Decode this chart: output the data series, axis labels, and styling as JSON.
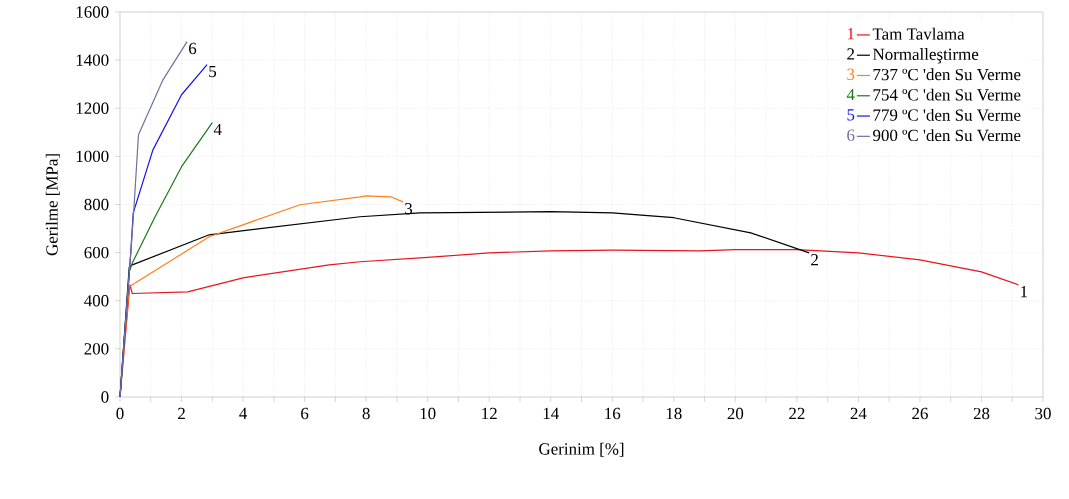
{
  "chart_data": {
    "type": "line",
    "xlabel": "Gerinim [%]",
    "ylabel": "Gerilme [MPa]",
    "xlim": [
      0,
      30
    ],
    "ylim": [
      0,
      1600
    ],
    "xticks": [
      0,
      {
        "value": 1,
        "label": null
      },
      2,
      {
        "value": 3,
        "label": null
      },
      4,
      {
        "value": 5,
        "label": null
      },
      6,
      {
        "value": 7,
        "label": null
      },
      8,
      {
        "value": 9,
        "label": null
      },
      10,
      {
        "value": 11,
        "label": null
      },
      12,
      {
        "value": 13,
        "label": null
      },
      14,
      {
        "value": 15,
        "label": null
      },
      16,
      {
        "value": 17,
        "label": null
      },
      18,
      {
        "value": 19,
        "label": null
      },
      20,
      {
        "value": 21,
        "label": null
      },
      22,
      {
        "value": 23,
        "label": null
      },
      24,
      {
        "value": 25,
        "label": null
      },
      26,
      {
        "value": 27,
        "label": null
      },
      28,
      {
        "value": 29,
        "label": null
      },
      30
    ],
    "yticks": [
      0,
      200,
      400,
      600,
      800,
      1000,
      1200,
      1400,
      1600
    ],
    "grid": true,
    "legend": "top right",
    "line_style": "solid",
    "series": [
      {
        "name": "Tam Tavlama",
        "color": "#e8141e",
        "x": [
          0,
          0.32,
          0.4,
          2.2,
          4.0,
          6.8,
          7.8,
          10,
          12,
          14,
          16,
          18.85,
          20,
          22,
          24,
          26,
          28,
          29.2
        ],
        "values": [
          0,
          466,
          430,
          437,
          495,
          549,
          562,
          580,
          599,
          607,
          610,
          607,
          612,
          612,
          599,
          570,
          520,
          466
        ]
      },
      {
        "name": "Normalleştirme",
        "color": "#000000",
        "x": [
          0,
          0.3,
          0.4,
          2.9,
          7.8,
          9.75,
          14,
          16,
          18,
          20.5,
          22.4
        ],
        "values": [
          0,
          540,
          549,
          674,
          749,
          765,
          770,
          765,
          745,
          682,
          599
        ]
      },
      {
        "name": "737 ºC 'den Su Verme",
        "color": "#ff7f1e",
        "x": [
          0,
          0.3,
          0.4,
          2.9,
          5.85,
          7.8,
          8.0,
          8.8,
          9.2
        ],
        "values": [
          0,
          460,
          466,
          666,
          799,
          832,
          836,
          832,
          811
        ]
      },
      {
        "name": "754 ºC 'den Su Verme",
        "color": "#1a7a1a",
        "x": [
          0,
          0.3,
          0.4,
          1.14,
          2.0,
          3.0
        ],
        "values": [
          0,
          520,
          557,
          749,
          957,
          1140
        ]
      },
      {
        "name": "779 ºC 'den Su Verme",
        "color": "#1414e6",
        "x": [
          0,
          0.35,
          0.43,
          1.07,
          2.0,
          2.83
        ],
        "values": [
          0,
          600,
          765,
          1027,
          1256,
          1381
        ]
      },
      {
        "name": "900 ºC 'den Su Verme",
        "color": "#7070a0",
        "x": [
          0,
          0.35,
          0.45,
          0.6,
          1.4,
          2.18
        ],
        "values": [
          0,
          600,
          780,
          1090,
          1319,
          1477
        ]
      }
    ],
    "annotations": [
      {
        "text": "1",
        "x": 29.2,
        "y": 466
      },
      {
        "text": "2",
        "x": 22.4,
        "y": 599
      },
      {
        "text": "3",
        "x": 9.2,
        "y": 811
      },
      {
        "text": "4",
        "x": 3.0,
        "y": 1140
      },
      {
        "text": "5",
        "x": 2.83,
        "y": 1381
      },
      {
        "text": "6",
        "x": 2.18,
        "y": 1477
      }
    ]
  }
}
